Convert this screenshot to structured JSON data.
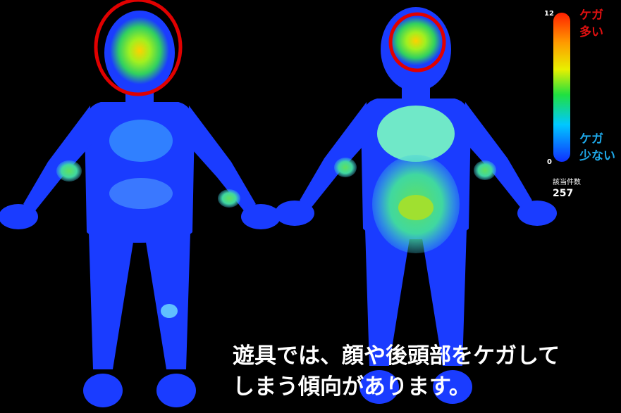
{
  "colorbar": {
    "max": 12,
    "min": 0,
    "high_label": [
      "ケガ",
      "多い"
    ],
    "low_label": [
      "ケガ",
      "少ない"
    ]
  },
  "count": {
    "label": "該当件数",
    "value": 257
  },
  "caption": [
    "遊具では、顔や後頭部をケガして",
    "しまう傾向があります。"
  ]
}
